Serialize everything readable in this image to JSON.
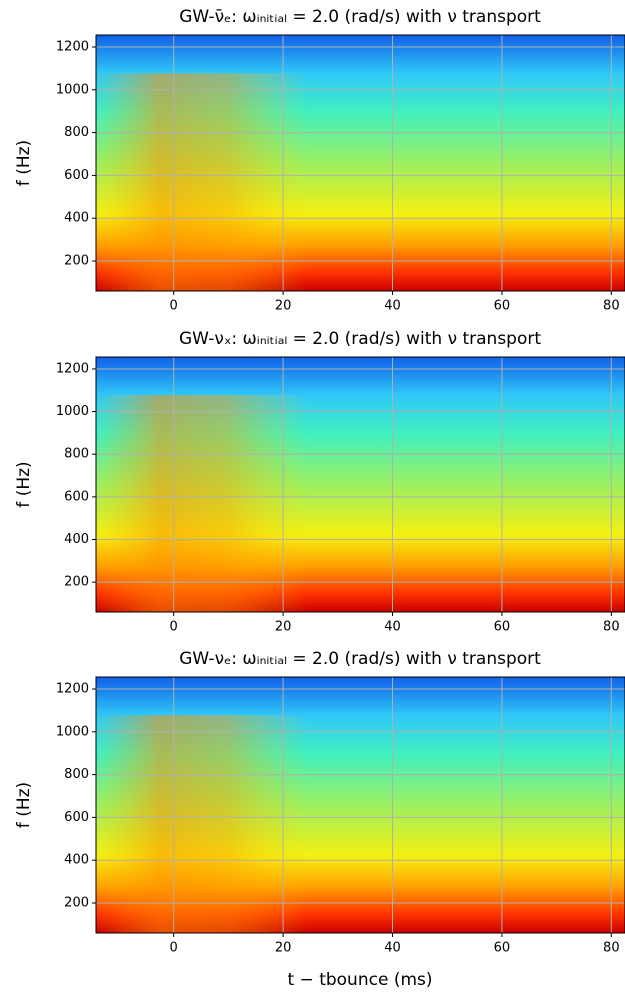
{
  "chart_data": [
    {
      "type": "spectrogram",
      "title": "GW-ν̄ₑ: ωᵢₙᵢₜᵢₐₗ = 2.0 (rad/s) with ν transport",
      "ylabel": "f (Hz)",
      "xlim": [
        -14.2,
        82.5
      ],
      "xticks": [
        0,
        20,
        40,
        60,
        80
      ],
      "ylim": [
        60,
        1256
      ],
      "yticks": [
        200,
        400,
        600,
        800,
        1000,
        1200
      ],
      "grid": true
    },
    {
      "type": "spectrogram",
      "title": "GW-νₓ: ωᵢₙᵢₜᵢₐₗ = 2.0 (rad/s) with ν transport",
      "ylabel": "f (Hz)",
      "xlim": [
        -14.2,
        82.5
      ],
      "xticks": [
        0,
        20,
        40,
        60,
        80
      ],
      "ylim": [
        60,
        1256
      ],
      "yticks": [
        200,
        400,
        600,
        800,
        1000,
        1200
      ],
      "grid": true
    },
    {
      "type": "spectrogram",
      "title": "GW-νₑ: ωᵢₙᵢₜᵢₐₗ = 2.0 (rad/s) with ν transport",
      "ylabel": "f (Hz)",
      "xlabel": "t − tbounce (ms)",
      "xlim": [
        -14.2,
        82.5
      ],
      "xticks": [
        0,
        20,
        40,
        60,
        80
      ],
      "ylim": [
        60,
        1256
      ],
      "yticks": [
        200,
        400,
        600,
        800,
        1000,
        1200
      ],
      "grid": true
    }
  ]
}
